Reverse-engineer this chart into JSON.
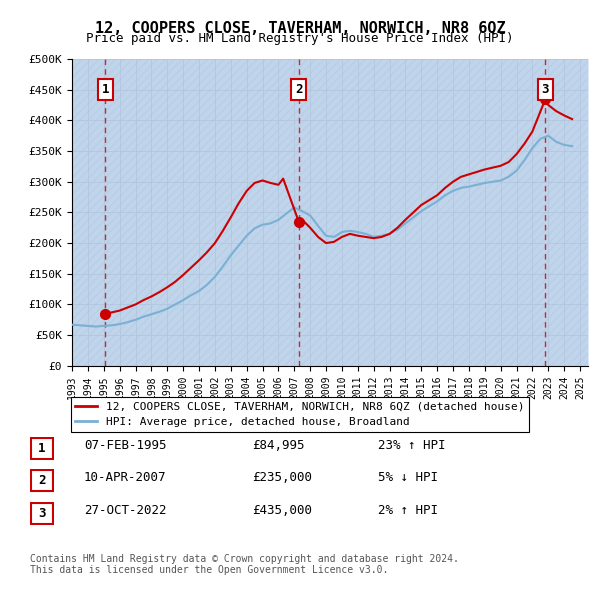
{
  "title": "12, COOPERS CLOSE, TAVERHAM, NORWICH, NR8 6QZ",
  "subtitle": "Price paid vs. HM Land Registry's House Price Index (HPI)",
  "ylabel_format": "£{0}K",
  "yticks": [
    0,
    50000,
    100000,
    150000,
    200000,
    250000,
    300000,
    350000,
    400000,
    450000,
    500000
  ],
  "ytick_labels": [
    "£0",
    "£50K",
    "£100K",
    "£150K",
    "£200K",
    "£250K",
    "£300K",
    "£350K",
    "£400K",
    "£450K",
    "£500K"
  ],
  "xlim_start": 1993.0,
  "xlim_end": 2025.5,
  "ylim_min": 0,
  "ylim_max": 500000,
  "background_color": "#dce9f8",
  "hatch_color": "#c0d4ec",
  "grid_color": "#b0c4de",
  "sale_points": [
    {
      "year": 1995.1,
      "price": 84995,
      "label": "1"
    },
    {
      "year": 2007.28,
      "price": 235000,
      "label": "2"
    },
    {
      "year": 2022.82,
      "price": 435000,
      "label": "3"
    }
  ],
  "sale_label_dates": [
    "07-FEB-1995",
    "10-APR-2007",
    "27-OCT-2022"
  ],
  "sale_label_prices": [
    "£84,995",
    "£235,000",
    "£435,000"
  ],
  "sale_label_hpi": [
    "23% ↑ HPI",
    "5% ↓ HPI",
    "2% ↑ HPI"
  ],
  "hpi_line_color": "#7ab0d4",
  "price_line_color": "#cc0000",
  "legend_property_label": "12, COOPERS CLOSE, TAVERHAM, NORWICH, NR8 6QZ (detached house)",
  "legend_hpi_label": "HPI: Average price, detached house, Broadland",
  "footer_text": "Contains HM Land Registry data © Crown copyright and database right 2024.\nThis data is licensed under the Open Government Licence v3.0.",
  "hpi_data": {
    "years": [
      1993.0,
      1993.5,
      1994.0,
      1994.5,
      1995.0,
      1995.5,
      1996.0,
      1996.5,
      1997.0,
      1997.5,
      1998.0,
      1998.5,
      1999.0,
      1999.5,
      2000.0,
      2000.5,
      2001.0,
      2001.5,
      2002.0,
      2002.5,
      2003.0,
      2003.5,
      2004.0,
      2004.5,
      2005.0,
      2005.5,
      2006.0,
      2006.5,
      2007.0,
      2007.5,
      2008.0,
      2008.5,
      2009.0,
      2009.5,
      2010.0,
      2010.5,
      2011.0,
      2011.5,
      2012.0,
      2012.5,
      2013.0,
      2013.5,
      2014.0,
      2014.5,
      2015.0,
      2015.5,
      2016.0,
      2016.5,
      2017.0,
      2017.5,
      2018.0,
      2018.5,
      2019.0,
      2019.5,
      2020.0,
      2020.5,
      2021.0,
      2021.5,
      2022.0,
      2022.5,
      2023.0,
      2023.5,
      2024.0,
      2024.5
    ],
    "values": [
      67000,
      66000,
      65000,
      64000,
      65000,
      66000,
      68000,
      71000,
      75000,
      80000,
      84000,
      88000,
      93000,
      100000,
      107000,
      115000,
      122000,
      132000,
      145000,
      162000,
      180000,
      196000,
      212000,
      224000,
      230000,
      232000,
      238000,
      248000,
      258000,
      252000,
      245000,
      228000,
      212000,
      210000,
      218000,
      220000,
      218000,
      215000,
      210000,
      212000,
      215000,
      222000,
      232000,
      242000,
      252000,
      260000,
      268000,
      278000,
      285000,
      290000,
      292000,
      295000,
      298000,
      300000,
      302000,
      308000,
      318000,
      335000,
      355000,
      370000,
      375000,
      365000,
      360000,
      358000
    ]
  },
  "price_line_data": {
    "years": [
      1993.0,
      1995.1,
      1995.5,
      1996.0,
      1996.5,
      1997.0,
      1997.5,
      1998.0,
      1998.5,
      1999.0,
      1999.5,
      2000.0,
      2000.5,
      2001.0,
      2001.5,
      2002.0,
      2002.5,
      2003.0,
      2003.5,
      2004.0,
      2004.5,
      2005.0,
      2005.5,
      2006.0,
      2006.3,
      2007.28,
      2007.5,
      2008.0,
      2008.5,
      2009.0,
      2009.5,
      2010.0,
      2010.5,
      2011.0,
      2011.5,
      2012.0,
      2012.5,
      2013.0,
      2013.5,
      2014.0,
      2014.5,
      2015.0,
      2015.5,
      2016.0,
      2016.5,
      2017.0,
      2017.5,
      2018.0,
      2018.5,
      2019.0,
      2019.5,
      2020.0,
      2020.5,
      2021.0,
      2021.5,
      2022.0,
      2022.82,
      2023.0,
      2023.5,
      2024.0,
      2024.5
    ],
    "values": [
      null,
      84995,
      87000,
      90000,
      95000,
      100000,
      107000,
      113000,
      120000,
      128000,
      137000,
      148000,
      160000,
      172000,
      185000,
      200000,
      220000,
      242000,
      265000,
      285000,
      298000,
      302000,
      298000,
      295000,
      305000,
      235000,
      238000,
      225000,
      210000,
      200000,
      202000,
      210000,
      215000,
      212000,
      210000,
      208000,
      210000,
      215000,
      225000,
      238000,
      250000,
      262000,
      270000,
      278000,
      290000,
      300000,
      308000,
      312000,
      316000,
      320000,
      323000,
      326000,
      332000,
      345000,
      362000,
      382000,
      435000,
      425000,
      415000,
      408000,
      402000
    ]
  }
}
